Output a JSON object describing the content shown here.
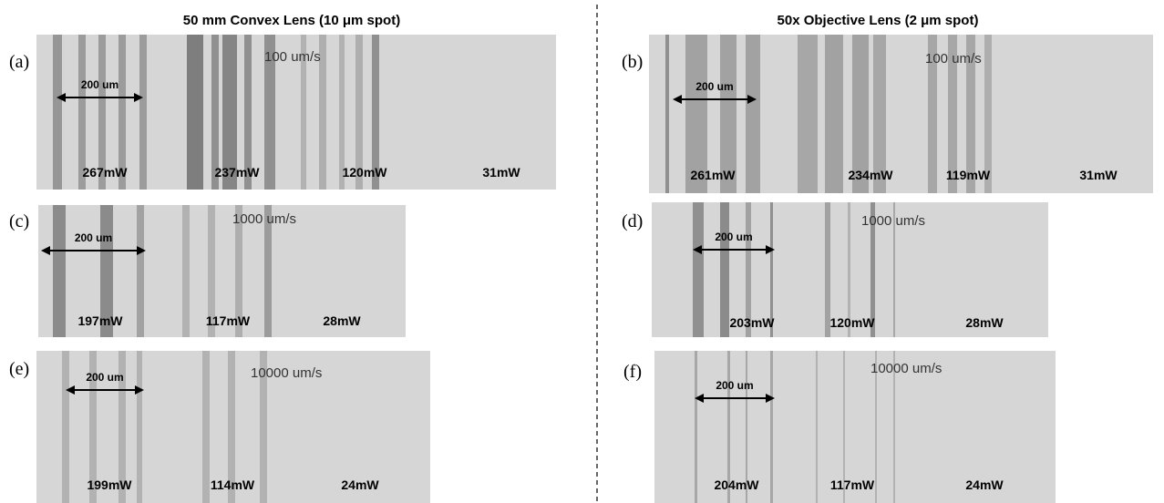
{
  "titles": [
    "50 mm Convex Lens (10 μm spot)",
    "50x Objective Lens (2 μm spot)"
  ],
  "panels": [
    {
      "label": "(a)",
      "speed": "100 um/s",
      "scale": "200 um",
      "powers": [
        "267mW",
        "237mW",
        "120mW",
        "31mW"
      ]
    },
    {
      "label": "(b)",
      "speed": "100 um/s",
      "scale": "200 um",
      "powers": [
        "261mW",
        "234mW",
        "119mW",
        "31mW"
      ]
    },
    {
      "label": "(c)",
      "speed": "1000 um/s",
      "scale": "200 um",
      "powers": [
        "197mW",
        "117mW",
        "28mW"
      ]
    },
    {
      "label": "(d)",
      "speed": "1000 um/s",
      "scale": "200 um",
      "powers": [
        "203mW",
        "120mW",
        "28mW"
      ]
    },
    {
      "label": "(e)",
      "speed": "10000 um/s",
      "scale": "200 um",
      "powers": [
        "199mW",
        "114mW",
        "24mW"
      ]
    },
    {
      "label": "(f)",
      "speed": "10000 um/s",
      "scale": "200 um",
      "powers": [
        "204mW",
        "117mW",
        "24mW"
      ]
    }
  ]
}
